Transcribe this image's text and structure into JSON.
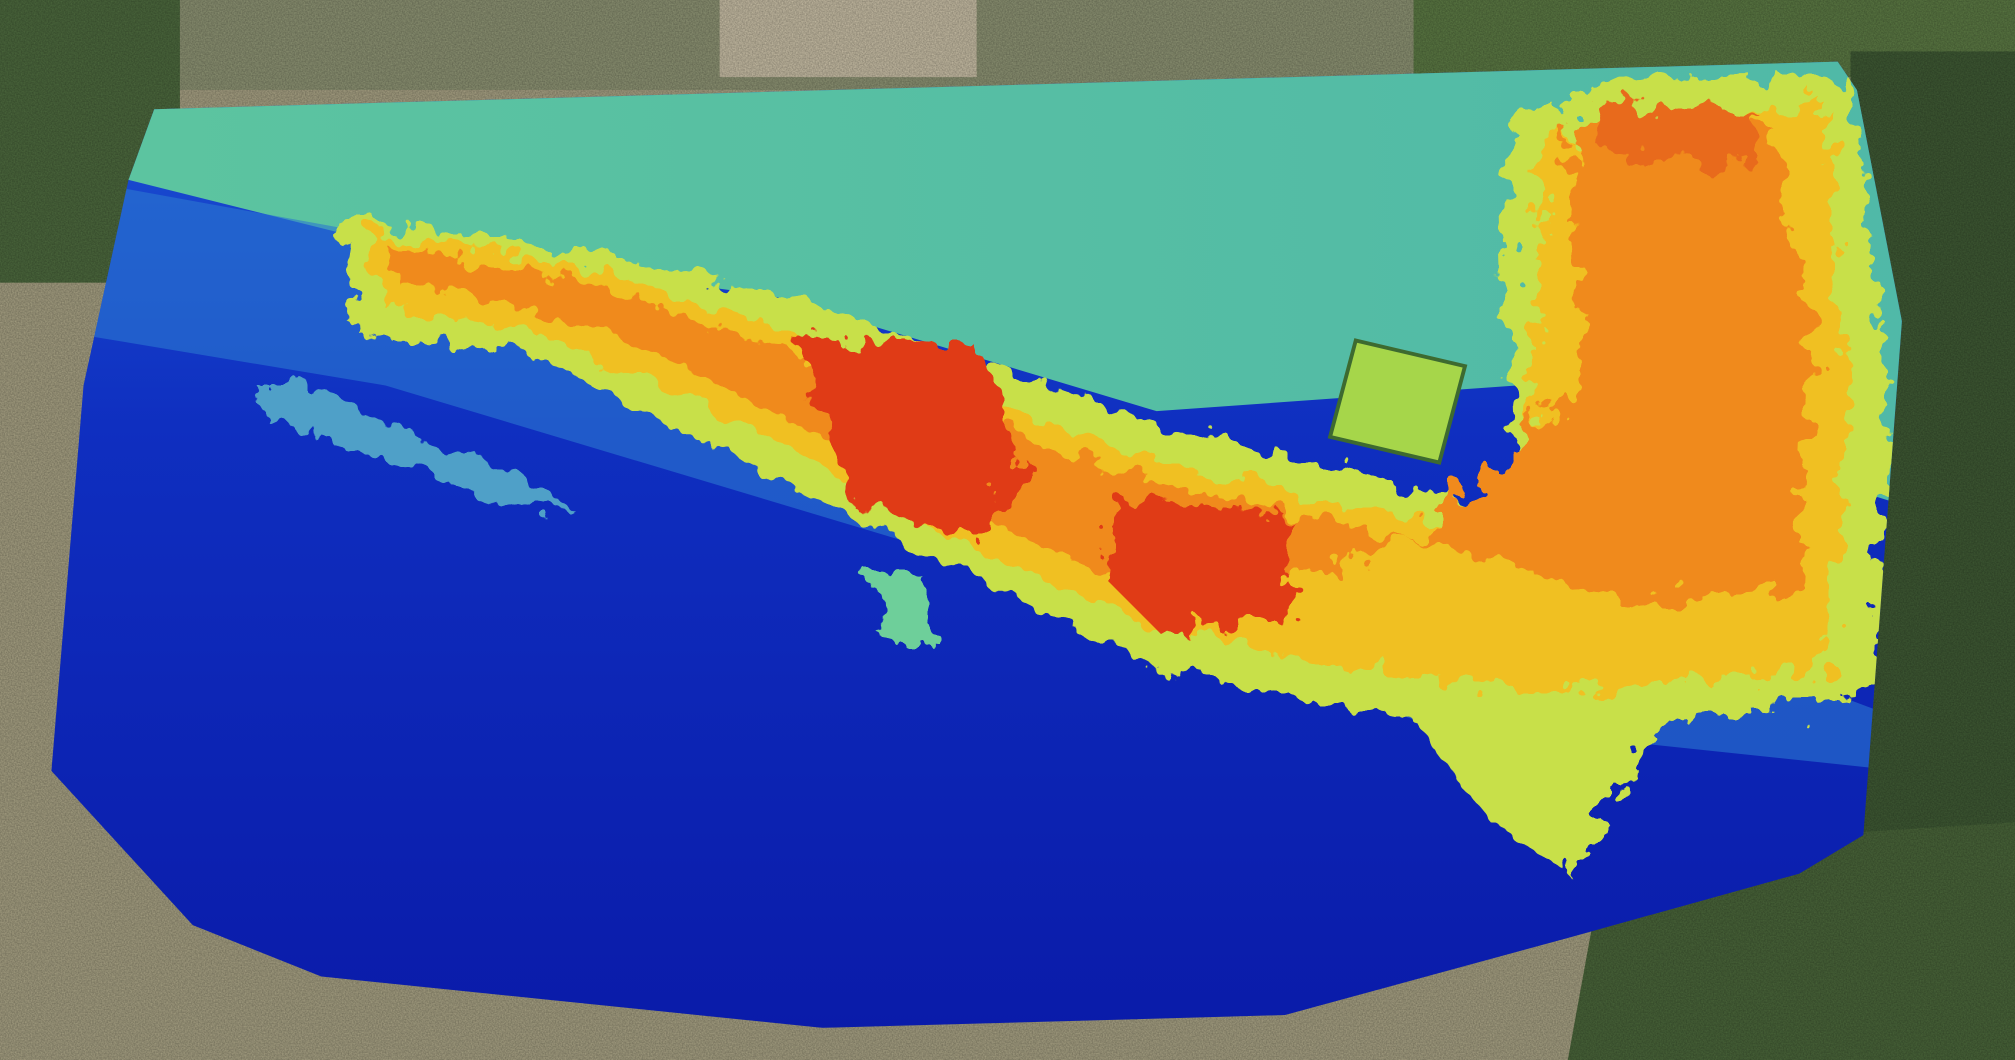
{
  "map": {
    "basemap": "satellite-imagery",
    "overlay": "elevation-hillshade",
    "colormap": [
      "#0a1fb0",
      "#1e5ad8",
      "#3fb4b0",
      "#6ecf9a",
      "#c8e04a",
      "#f0c020",
      "#f08a1e",
      "#e03a18"
    ]
  }
}
